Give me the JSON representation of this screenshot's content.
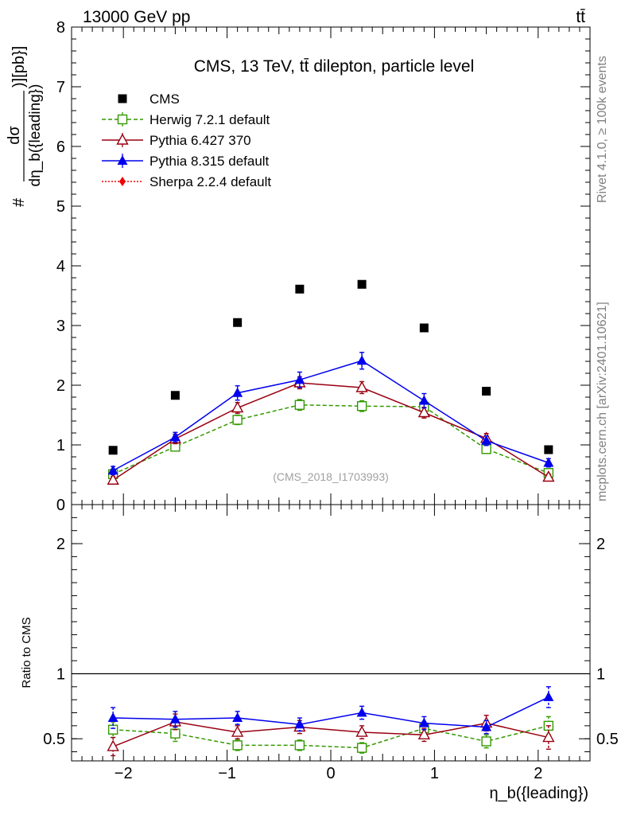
{
  "header": {
    "energy_label": "13000 GeV pp",
    "process_label": "tt̄"
  },
  "side_labels": {
    "rivet": "Rivet 4.1.0, ≥ 100k events",
    "source": "mcplots.cern.ch [arXiv:2401.10621]"
  },
  "chart_data": [
    {
      "type": "scatter",
      "panel": "main",
      "title": "CMS, 13 TeV, tt̄ dilepton, particle level",
      "analysis_id": "(CMS_2018_I1703993)",
      "ylabel_num": "dσ",
      "ylabel_den": "dη_b({leading})",
      "ylabel_prefix": "#",
      "ylabel_suffix": ")][pb}]",
      "xlabel": "η_b({leading})",
      "xlim": [
        -2.5,
        2.5
      ],
      "ylim": [
        0,
        8
      ],
      "x_ticks": [
        -2,
        -1,
        0,
        1,
        2
      ],
      "y_ticks": [
        0,
        1,
        2,
        3,
        4,
        5,
        6,
        7,
        8
      ],
      "x": [
        -2.1,
        -1.5,
        -0.9,
        -0.3,
        0.3,
        0.9,
        1.5,
        2.1
      ],
      "series": [
        {
          "name": "CMS",
          "style": "data",
          "color": "#000000",
          "values": [
            0.91,
            1.83,
            3.05,
            3.61,
            3.69,
            2.96,
            1.9,
            0.92
          ],
          "errors": [
            0,
            0,
            0,
            0,
            0,
            0,
            0,
            0
          ]
        },
        {
          "name": "Herwig 7.2.1 default",
          "style": "herwig",
          "color": "#339900",
          "values": [
            0.51,
            0.97,
            1.42,
            1.67,
            1.65,
            1.64,
            0.93,
            0.53
          ],
          "errors": [
            0.05,
            0.06,
            0.08,
            0.09,
            0.09,
            0.09,
            0.07,
            0.05
          ]
        },
        {
          "name": "Pythia 6.427 370",
          "style": "py6",
          "color": "#990011",
          "values": [
            0.41,
            1.1,
            1.62,
            2.04,
            1.96,
            1.54,
            1.11,
            0.46
          ],
          "errors": [
            0.06,
            0.08,
            0.09,
            0.1,
            0.1,
            0.09,
            0.08,
            0.05
          ]
        },
        {
          "name": "Pythia 8.315 default",
          "style": "py8",
          "color": "#0000ee",
          "values": [
            0.57,
            1.13,
            1.87,
            2.09,
            2.41,
            1.74,
            1.07,
            0.7
          ],
          "errors": [
            0.07,
            0.08,
            0.12,
            0.13,
            0.14,
            0.12,
            0.08,
            0.07
          ]
        },
        {
          "name": "Sherpa 2.2.4 default",
          "style": "sherpa",
          "color": "#ee0000",
          "values": [],
          "errors": []
        }
      ]
    },
    {
      "type": "line",
      "panel": "ratio",
      "ylabel": "Ratio to CMS",
      "xlim": [
        -2.5,
        2.5
      ],
      "ylim": [
        0.33,
        2.3
      ],
      "y_ticks": [
        0.5,
        1,
        2
      ],
      "y_tick_labels": [
        "0.5",
        "1",
        "2"
      ],
      "x_ticks": [
        -2,
        -1,
        0,
        1,
        2
      ],
      "x_tick_labels": [
        "−2",
        "−1",
        "0",
        "1",
        "2"
      ],
      "reference_line": 1,
      "x": [
        -2.1,
        -1.5,
        -0.9,
        -0.3,
        0.3,
        0.9,
        1.5,
        2.1
      ],
      "series": [
        {
          "name": "Herwig 7.2.1 default",
          "style": "herwig",
          "color": "#339900",
          "values": [
            0.57,
            0.54,
            0.45,
            0.45,
            0.43,
            0.58,
            0.48,
            0.6
          ],
          "errors": [
            0.06,
            0.06,
            0.04,
            0.04,
            0.04,
            0.05,
            0.05,
            0.07
          ]
        },
        {
          "name": "Pythia 6.427 370",
          "style": "py6",
          "color": "#990011",
          "values": [
            0.44,
            0.63,
            0.55,
            0.59,
            0.55,
            0.53,
            0.62,
            0.51
          ],
          "errors": [
            0.07,
            0.06,
            0.05,
            0.05,
            0.05,
            0.05,
            0.06,
            0.09
          ]
        },
        {
          "name": "Pythia 8.315 default",
          "style": "py8",
          "color": "#0000ee",
          "values": [
            0.66,
            0.65,
            0.66,
            0.61,
            0.7,
            0.62,
            0.59,
            0.82
          ],
          "errors": [
            0.08,
            0.06,
            0.05,
            0.05,
            0.05,
            0.05,
            0.05,
            0.08
          ]
        }
      ]
    }
  ]
}
